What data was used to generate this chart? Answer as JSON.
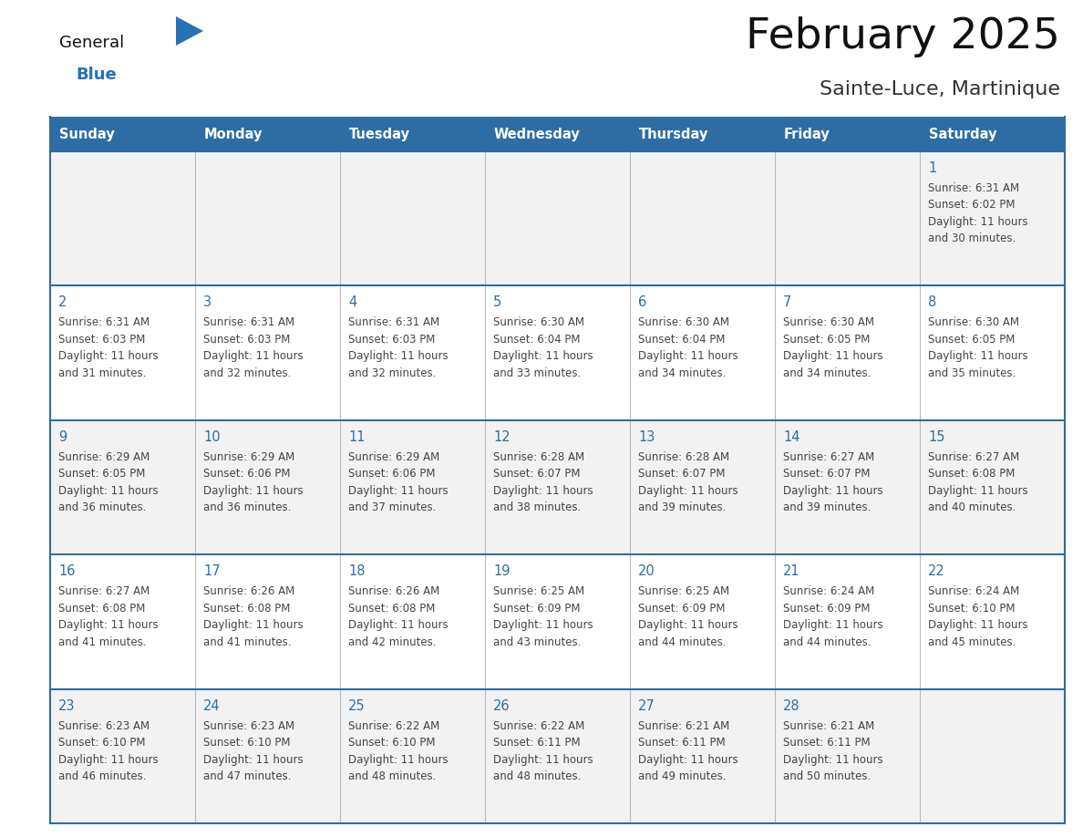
{
  "title": "February 2025",
  "subtitle": "Sainte-Luce, Martinique",
  "days_of_week": [
    "Sunday",
    "Monday",
    "Tuesday",
    "Wednesday",
    "Thursday",
    "Friday",
    "Saturday"
  ],
  "header_bg": "#2E6DA4",
  "header_text": "#FFFFFF",
  "cell_bg_odd": "#F2F2F2",
  "cell_bg_even": "#FFFFFF",
  "border_color": "#2E6DA4",
  "day_num_color": "#2E6DA4",
  "cell_text_color": "#444444",
  "title_color": "#111111",
  "subtitle_color": "#333333",
  "logo_general_color": "#111111",
  "logo_blue_color": "#2771B5",
  "calendar_data": [
    [
      null,
      null,
      null,
      null,
      null,
      null,
      {
        "day": 1,
        "sunrise": "6:31 AM",
        "sunset": "6:02 PM",
        "daylight_line1": "Daylight: 11 hours",
        "daylight_line2": "and 30 minutes."
      }
    ],
    [
      {
        "day": 2,
        "sunrise": "6:31 AM",
        "sunset": "6:03 PM",
        "daylight_line1": "Daylight: 11 hours",
        "daylight_line2": "and 31 minutes."
      },
      {
        "day": 3,
        "sunrise": "6:31 AM",
        "sunset": "6:03 PM",
        "daylight_line1": "Daylight: 11 hours",
        "daylight_line2": "and 32 minutes."
      },
      {
        "day": 4,
        "sunrise": "6:31 AM",
        "sunset": "6:03 PM",
        "daylight_line1": "Daylight: 11 hours",
        "daylight_line2": "and 32 minutes."
      },
      {
        "day": 5,
        "sunrise": "6:30 AM",
        "sunset": "6:04 PM",
        "daylight_line1": "Daylight: 11 hours",
        "daylight_line2": "and 33 minutes."
      },
      {
        "day": 6,
        "sunrise": "6:30 AM",
        "sunset": "6:04 PM",
        "daylight_line1": "Daylight: 11 hours",
        "daylight_line2": "and 34 minutes."
      },
      {
        "day": 7,
        "sunrise": "6:30 AM",
        "sunset": "6:05 PM",
        "daylight_line1": "Daylight: 11 hours",
        "daylight_line2": "and 34 minutes."
      },
      {
        "day": 8,
        "sunrise": "6:30 AM",
        "sunset": "6:05 PM",
        "daylight_line1": "Daylight: 11 hours",
        "daylight_line2": "and 35 minutes."
      }
    ],
    [
      {
        "day": 9,
        "sunrise": "6:29 AM",
        "sunset": "6:05 PM",
        "daylight_line1": "Daylight: 11 hours",
        "daylight_line2": "and 36 minutes."
      },
      {
        "day": 10,
        "sunrise": "6:29 AM",
        "sunset": "6:06 PM",
        "daylight_line1": "Daylight: 11 hours",
        "daylight_line2": "and 36 minutes."
      },
      {
        "day": 11,
        "sunrise": "6:29 AM",
        "sunset": "6:06 PM",
        "daylight_line1": "Daylight: 11 hours",
        "daylight_line2": "and 37 minutes."
      },
      {
        "day": 12,
        "sunrise": "6:28 AM",
        "sunset": "6:07 PM",
        "daylight_line1": "Daylight: 11 hours",
        "daylight_line2": "and 38 minutes."
      },
      {
        "day": 13,
        "sunrise": "6:28 AM",
        "sunset": "6:07 PM",
        "daylight_line1": "Daylight: 11 hours",
        "daylight_line2": "and 39 minutes."
      },
      {
        "day": 14,
        "sunrise": "6:27 AM",
        "sunset": "6:07 PM",
        "daylight_line1": "Daylight: 11 hours",
        "daylight_line2": "and 39 minutes."
      },
      {
        "day": 15,
        "sunrise": "6:27 AM",
        "sunset": "6:08 PM",
        "daylight_line1": "Daylight: 11 hours",
        "daylight_line2": "and 40 minutes."
      }
    ],
    [
      {
        "day": 16,
        "sunrise": "6:27 AM",
        "sunset": "6:08 PM",
        "daylight_line1": "Daylight: 11 hours",
        "daylight_line2": "and 41 minutes."
      },
      {
        "day": 17,
        "sunrise": "6:26 AM",
        "sunset": "6:08 PM",
        "daylight_line1": "Daylight: 11 hours",
        "daylight_line2": "and 41 minutes."
      },
      {
        "day": 18,
        "sunrise": "6:26 AM",
        "sunset": "6:08 PM",
        "daylight_line1": "Daylight: 11 hours",
        "daylight_line2": "and 42 minutes."
      },
      {
        "day": 19,
        "sunrise": "6:25 AM",
        "sunset": "6:09 PM",
        "daylight_line1": "Daylight: 11 hours",
        "daylight_line2": "and 43 minutes."
      },
      {
        "day": 20,
        "sunrise": "6:25 AM",
        "sunset": "6:09 PM",
        "daylight_line1": "Daylight: 11 hours",
        "daylight_line2": "and 44 minutes."
      },
      {
        "day": 21,
        "sunrise": "6:24 AM",
        "sunset": "6:09 PM",
        "daylight_line1": "Daylight: 11 hours",
        "daylight_line2": "and 44 minutes."
      },
      {
        "day": 22,
        "sunrise": "6:24 AM",
        "sunset": "6:10 PM",
        "daylight_line1": "Daylight: 11 hours",
        "daylight_line2": "and 45 minutes."
      }
    ],
    [
      {
        "day": 23,
        "sunrise": "6:23 AM",
        "sunset": "6:10 PM",
        "daylight_line1": "Daylight: 11 hours",
        "daylight_line2": "and 46 minutes."
      },
      {
        "day": 24,
        "sunrise": "6:23 AM",
        "sunset": "6:10 PM",
        "daylight_line1": "Daylight: 11 hours",
        "daylight_line2": "and 47 minutes."
      },
      {
        "day": 25,
        "sunrise": "6:22 AM",
        "sunset": "6:10 PM",
        "daylight_line1": "Daylight: 11 hours",
        "daylight_line2": "and 48 minutes."
      },
      {
        "day": 26,
        "sunrise": "6:22 AM",
        "sunset": "6:11 PM",
        "daylight_line1": "Daylight: 11 hours",
        "daylight_line2": "and 48 minutes."
      },
      {
        "day": 27,
        "sunrise": "6:21 AM",
        "sunset": "6:11 PM",
        "daylight_line1": "Daylight: 11 hours",
        "daylight_line2": "and 49 minutes."
      },
      {
        "day": 28,
        "sunrise": "6:21 AM",
        "sunset": "6:11 PM",
        "daylight_line1": "Daylight: 11 hours",
        "daylight_line2": "and 50 minutes."
      },
      null
    ]
  ]
}
